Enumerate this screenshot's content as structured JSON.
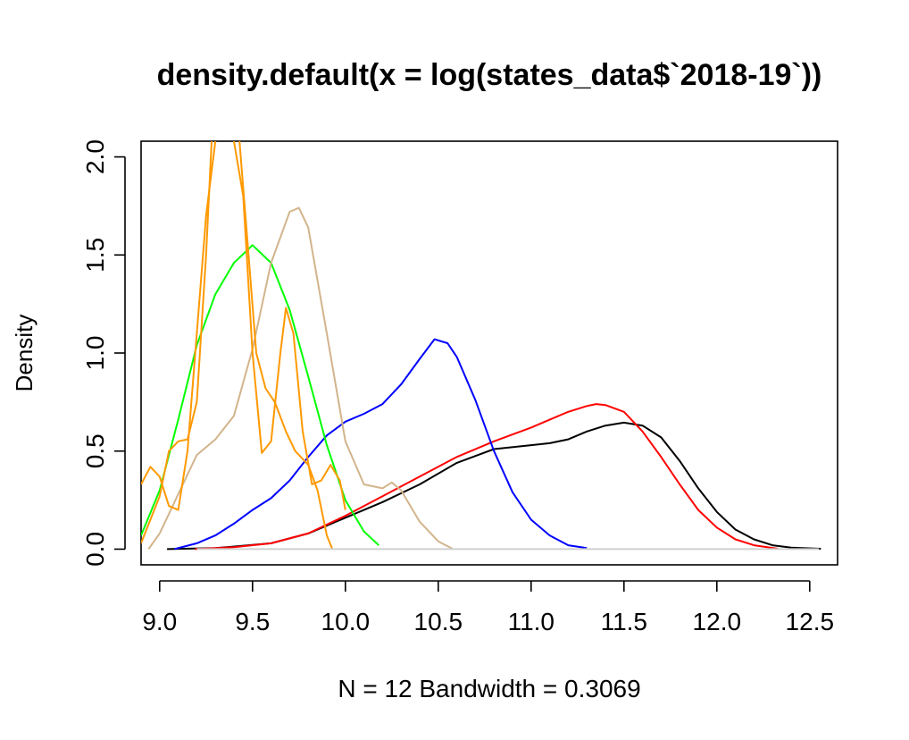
{
  "chart_data": {
    "type": "line",
    "title": "density.default(x = log(states_data$`2018-19`))",
    "xlabel": "N = 12   Bandwidth = 0.3069",
    "ylabel": "Density",
    "xlim": [
      8.9,
      12.65
    ],
    "ylim": [
      -0.08,
      2.08
    ],
    "x_ticks": [
      9.0,
      9.5,
      10.0,
      10.5,
      11.0,
      11.5,
      12.0,
      12.5
    ],
    "x_tick_labels": [
      "9.0",
      "9.5",
      "10.0",
      "10.5",
      "11.0",
      "11.5",
      "12.0",
      "12.5"
    ],
    "y_ticks": [
      0.0,
      0.5,
      1.0,
      1.5,
      2.0
    ],
    "y_tick_labels": [
      "0.0",
      "0.5",
      "1.0",
      "1.5",
      "2.0"
    ],
    "grid": false,
    "legend": "none",
    "series": [
      {
        "color": "#000000",
        "points": [
          [
            9.04,
            0.0
          ],
          [
            9.3,
            0.005
          ],
          [
            9.6,
            0.03
          ],
          [
            9.8,
            0.08
          ],
          [
            10.0,
            0.16
          ],
          [
            10.2,
            0.24
          ],
          [
            10.4,
            0.33
          ],
          [
            10.6,
            0.44
          ],
          [
            10.8,
            0.51
          ],
          [
            11.0,
            0.53
          ],
          [
            11.1,
            0.54
          ],
          [
            11.2,
            0.56
          ],
          [
            11.3,
            0.6
          ],
          [
            11.4,
            0.63
          ],
          [
            11.5,
            0.645
          ],
          [
            11.6,
            0.63
          ],
          [
            11.7,
            0.57
          ],
          [
            11.8,
            0.45
          ],
          [
            11.9,
            0.31
          ],
          [
            12.0,
            0.19
          ],
          [
            12.1,
            0.1
          ],
          [
            12.2,
            0.05
          ],
          [
            12.3,
            0.02
          ],
          [
            12.4,
            0.008
          ],
          [
            12.56,
            0.002
          ]
        ]
      },
      {
        "color": "#ff0000",
        "points": [
          [
            9.19,
            0.0
          ],
          [
            9.4,
            0.01
          ],
          [
            9.6,
            0.03
          ],
          [
            9.8,
            0.08
          ],
          [
            10.0,
            0.17
          ],
          [
            10.2,
            0.27
          ],
          [
            10.4,
            0.37
          ],
          [
            10.6,
            0.47
          ],
          [
            10.8,
            0.55
          ],
          [
            11.0,
            0.62
          ],
          [
            11.1,
            0.66
          ],
          [
            11.2,
            0.7
          ],
          [
            11.3,
            0.73
          ],
          [
            11.35,
            0.74
          ],
          [
            11.4,
            0.735
          ],
          [
            11.5,
            0.7
          ],
          [
            11.6,
            0.6
          ],
          [
            11.7,
            0.47
          ],
          [
            11.8,
            0.33
          ],
          [
            11.9,
            0.2
          ],
          [
            12.0,
            0.11
          ],
          [
            12.1,
            0.05
          ],
          [
            12.2,
            0.02
          ],
          [
            12.33,
            0.002
          ]
        ]
      },
      {
        "color": "#0000ff",
        "points": [
          [
            9.08,
            0.0
          ],
          [
            9.2,
            0.03
          ],
          [
            9.3,
            0.07
          ],
          [
            9.4,
            0.13
          ],
          [
            9.5,
            0.2
          ],
          [
            9.6,
            0.26
          ],
          [
            9.7,
            0.35
          ],
          [
            9.8,
            0.47
          ],
          [
            9.9,
            0.58
          ],
          [
            10.0,
            0.65
          ],
          [
            10.1,
            0.69
          ],
          [
            10.2,
            0.74
          ],
          [
            10.3,
            0.84
          ],
          [
            10.4,
            0.97
          ],
          [
            10.48,
            1.07
          ],
          [
            10.55,
            1.05
          ],
          [
            10.6,
            0.98
          ],
          [
            10.7,
            0.76
          ],
          [
            10.8,
            0.5
          ],
          [
            10.9,
            0.29
          ],
          [
            11.0,
            0.15
          ],
          [
            11.1,
            0.07
          ],
          [
            11.2,
            0.02
          ],
          [
            11.3,
            0.005
          ]
        ]
      },
      {
        "color": "#00ff00",
        "points": [
          [
            8.9,
            0.07
          ],
          [
            9.0,
            0.3
          ],
          [
            9.1,
            0.66
          ],
          [
            9.2,
            1.04
          ],
          [
            9.3,
            1.3
          ],
          [
            9.4,
            1.46
          ],
          [
            9.5,
            1.55
          ],
          [
            9.6,
            1.46
          ],
          [
            9.7,
            1.22
          ],
          [
            9.8,
            0.88
          ],
          [
            9.9,
            0.53
          ],
          [
            10.0,
            0.25
          ],
          [
            10.1,
            0.09
          ],
          [
            10.18,
            0.02
          ]
        ]
      },
      {
        "color": "#d2b48c",
        "points": [
          [
            8.94,
            0.0
          ],
          [
            9.0,
            0.08
          ],
          [
            9.1,
            0.28
          ],
          [
            9.2,
            0.48
          ],
          [
            9.3,
            0.56
          ],
          [
            9.4,
            0.68
          ],
          [
            9.5,
            1.02
          ],
          [
            9.6,
            1.46
          ],
          [
            9.7,
            1.72
          ],
          [
            9.75,
            1.74
          ],
          [
            9.8,
            1.64
          ],
          [
            9.9,
            1.1
          ],
          [
            10.0,
            0.55
          ],
          [
            10.1,
            0.33
          ],
          [
            10.2,
            0.31
          ],
          [
            10.25,
            0.34
          ],
          [
            10.3,
            0.3
          ],
          [
            10.4,
            0.14
          ],
          [
            10.5,
            0.04
          ],
          [
            10.58,
            0.0
          ]
        ]
      },
      {
        "color": "#ff9900",
        "points": [
          [
            8.9,
            0.33
          ],
          [
            8.95,
            0.42
          ],
          [
            9.0,
            0.37
          ],
          [
            9.05,
            0.22
          ],
          [
            9.1,
            0.2
          ],
          [
            9.15,
            0.5
          ],
          [
            9.2,
            1.1
          ],
          [
            9.25,
            1.7
          ],
          [
            9.3,
            2.08
          ]
        ]
      },
      {
        "color": "#ff9900",
        "points": [
          [
            9.4,
            2.08
          ],
          [
            9.45,
            1.8
          ],
          [
            9.5,
            1.0
          ],
          [
            9.55,
            0.49
          ],
          [
            9.6,
            0.55
          ],
          [
            9.65,
            1.0
          ],
          [
            9.68,
            1.23
          ],
          [
            9.72,
            1.1
          ],
          [
            9.77,
            0.6
          ],
          [
            9.82,
            0.33
          ],
          [
            9.87,
            0.35
          ],
          [
            9.92,
            0.43
          ],
          [
            9.97,
            0.35
          ],
          [
            10.0,
            0.2
          ]
        ]
      },
      {
        "color": "#ff9900",
        "points": [
          [
            8.9,
            0.03
          ],
          [
            9.0,
            0.27
          ],
          [
            9.05,
            0.5
          ],
          [
            9.1,
            0.55
          ],
          [
            9.15,
            0.56
          ],
          [
            9.2,
            0.75
          ],
          [
            9.25,
            1.5
          ],
          [
            9.28,
            2.08
          ]
        ]
      },
      {
        "color": "#ff9900",
        "points": [
          [
            9.43,
            2.08
          ],
          [
            9.47,
            1.6
          ],
          [
            9.52,
            1.0
          ],
          [
            9.57,
            0.82
          ],
          [
            9.62,
            0.75
          ],
          [
            9.68,
            0.6
          ],
          [
            9.73,
            0.5
          ],
          [
            9.8,
            0.43
          ],
          [
            9.85,
            0.3
          ],
          [
            9.9,
            0.07
          ],
          [
            9.93,
            0.0
          ]
        ]
      },
      {
        "color": "#d0d0d0",
        "points": [
          [
            9.2,
            0.0
          ],
          [
            10.0,
            0.0
          ],
          [
            11.0,
            0.0
          ],
          [
            12.0,
            0.0
          ],
          [
            12.55,
            0.0
          ]
        ]
      }
    ]
  }
}
